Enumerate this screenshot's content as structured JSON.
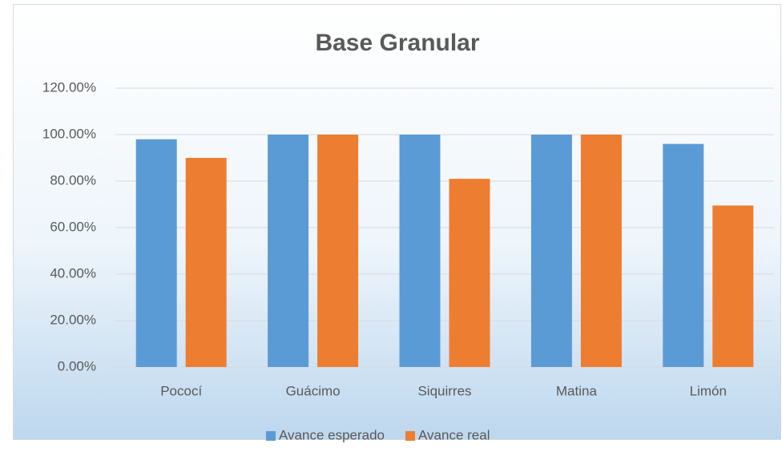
{
  "chart_data": {
    "type": "bar",
    "title": "Base Granular",
    "categories": [
      "Pococí",
      "Guácimo",
      "Siquirres",
      "Matina",
      "Limón"
    ],
    "series": [
      {
        "name": "Avance esperado",
        "color": "#5b9bd5",
        "values": [
          98,
          100,
          100,
          100,
          96
        ]
      },
      {
        "name": "Avance real",
        "color": "#ed7d31",
        "values": [
          90,
          100,
          81,
          100,
          69.5
        ]
      }
    ],
    "ylim": [
      0,
      120
    ],
    "yticks": [
      {
        "value": 0,
        "label": "0.00%"
      },
      {
        "value": 20,
        "label": "20.00%"
      },
      {
        "value": 40,
        "label": "40.00%"
      },
      {
        "value": 60,
        "label": "60.00%"
      },
      {
        "value": 80,
        "label": "80.00%"
      },
      {
        "value": 100,
        "label": "100.00%"
      },
      {
        "value": 120,
        "label": "120.00%"
      }
    ],
    "grid": true,
    "legend": "bottom"
  }
}
